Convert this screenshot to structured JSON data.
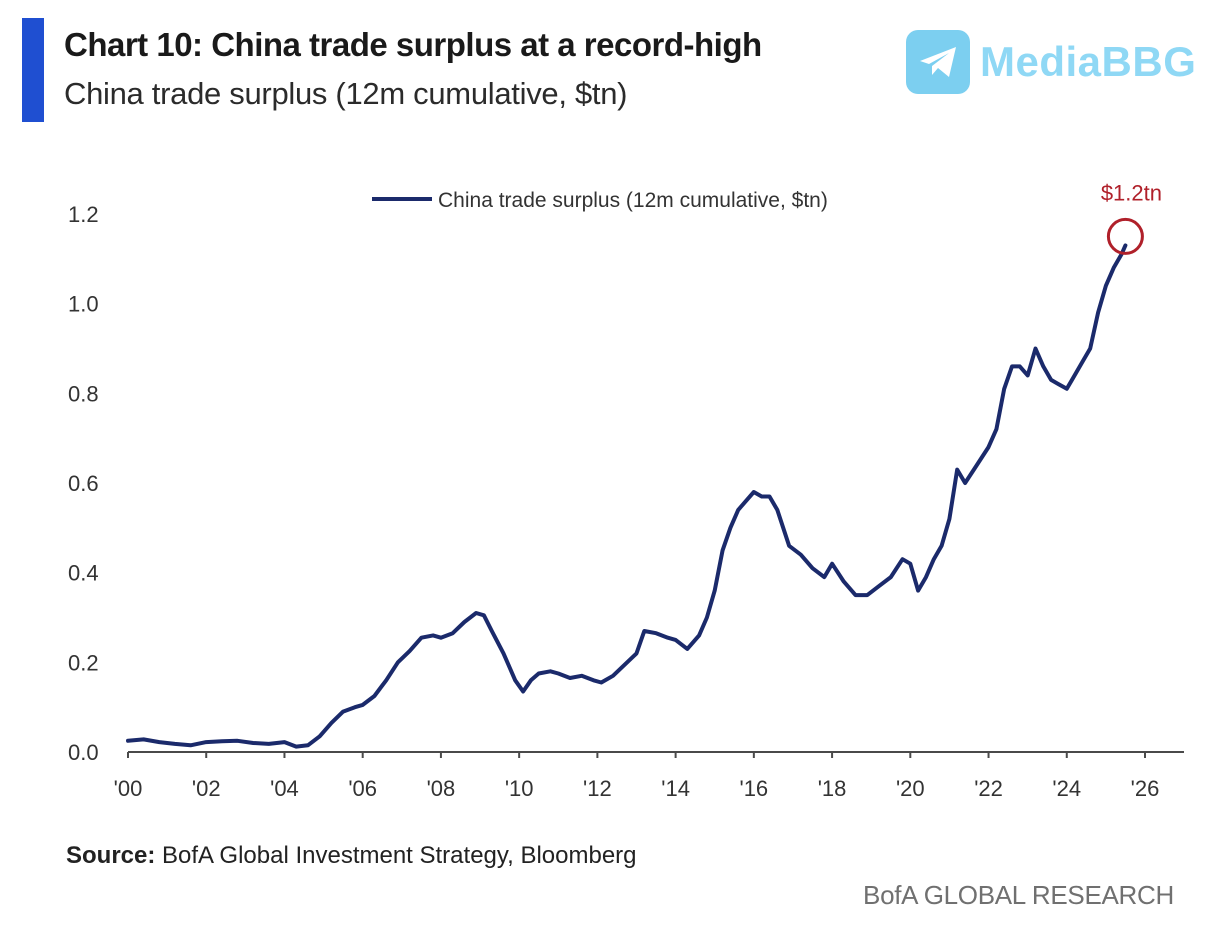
{
  "header": {
    "title": "Chart 10: China trade surplus at a record-high",
    "subtitle": "China trade surplus (12m cumulative, $tn)"
  },
  "watermark": {
    "text": "MediaBBG",
    "icon": "telegram-plane-icon"
  },
  "source": {
    "label": "Source:",
    "text": "BofA Global Investment Strategy, Bloomberg"
  },
  "footer": {
    "brand": "BofA GLOBAL RESEARCH"
  },
  "colors": {
    "line": "#1b2a6b",
    "accent_bar": "#1f4fd1",
    "annotation": "#b0202a",
    "watermark": "#8fd8f5"
  },
  "chart_data": {
    "type": "line",
    "title": "China trade surplus (12m cumulative, $tn)",
    "xlabel": "",
    "ylabel": "",
    "xlim": [
      2000,
      2027
    ],
    "ylim": [
      0,
      1.2
    ],
    "x_ticks": [
      2000,
      2002,
      2004,
      2006,
      2008,
      2010,
      2012,
      2014,
      2016,
      2018,
      2020,
      2022,
      2024,
      2026
    ],
    "x_tick_labels": [
      "'00",
      "'02",
      "'04",
      "'06",
      "'08",
      "'10",
      "'12",
      "'14",
      "'16",
      "'18",
      "'20",
      "'22",
      "'24",
      "'26"
    ],
    "y_ticks": [
      0,
      0.2,
      0.4,
      0.6,
      0.8,
      1.0,
      1.2
    ],
    "y_tick_labels": [
      "0.0",
      "0.2",
      "0.4",
      "0.6",
      "0.8",
      "1.0",
      "1.2"
    ],
    "grid": false,
    "legend": {
      "position": "top-center",
      "entries": [
        "China trade surplus (12m cumulative, $tn)"
      ]
    },
    "annotation": {
      "text": "$1.2tn",
      "x": 2025.5,
      "y": 1.15,
      "marker": "circle"
    },
    "series": [
      {
        "name": "China trade surplus (12m cumulative, $tn)",
        "x": [
          2000.0,
          2000.4,
          2000.8,
          2001.2,
          2001.6,
          2002.0,
          2002.4,
          2002.8,
          2003.2,
          2003.6,
          2004.0,
          2004.3,
          2004.6,
          2004.9,
          2005.2,
          2005.5,
          2005.8,
          2006.0,
          2006.3,
          2006.6,
          2006.9,
          2007.2,
          2007.5,
          2007.8,
          2008.0,
          2008.3,
          2008.6,
          2008.9,
          2009.1,
          2009.3,
          2009.6,
          2009.9,
          2010.1,
          2010.3,
          2010.5,
          2010.8,
          2011.0,
          2011.3,
          2011.6,
          2011.9,
          2012.1,
          2012.4,
          2012.7,
          2013.0,
          2013.2,
          2013.5,
          2013.8,
          2014.0,
          2014.3,
          2014.6,
          2014.8,
          2015.0,
          2015.2,
          2015.4,
          2015.6,
          2015.8,
          2016.0,
          2016.2,
          2016.4,
          2016.6,
          2016.9,
          2017.2,
          2017.5,
          2017.8,
          2018.0,
          2018.3,
          2018.6,
          2018.9,
          2019.2,
          2019.5,
          2019.8,
          2020.0,
          2020.2,
          2020.4,
          2020.6,
          2020.8,
          2021.0,
          2021.2,
          2021.4,
          2021.7,
          2022.0,
          2022.2,
          2022.4,
          2022.6,
          2022.8,
          2023.0,
          2023.2,
          2023.4,
          2023.6,
          2023.8,
          2024.0,
          2024.2,
          2024.4,
          2024.6,
          2024.8,
          2025.0,
          2025.2,
          2025.4,
          2025.5
        ],
        "values": [
          0.025,
          0.028,
          0.022,
          0.018,
          0.015,
          0.022,
          0.024,
          0.025,
          0.02,
          0.018,
          0.022,
          0.012,
          0.015,
          0.035,
          0.065,
          0.09,
          0.1,
          0.105,
          0.125,
          0.16,
          0.2,
          0.225,
          0.255,
          0.26,
          0.255,
          0.265,
          0.29,
          0.31,
          0.305,
          0.27,
          0.22,
          0.16,
          0.135,
          0.16,
          0.175,
          0.18,
          0.175,
          0.165,
          0.17,
          0.16,
          0.155,
          0.17,
          0.195,
          0.22,
          0.27,
          0.265,
          0.255,
          0.25,
          0.23,
          0.26,
          0.3,
          0.36,
          0.45,
          0.5,
          0.54,
          0.56,
          0.58,
          0.57,
          0.57,
          0.54,
          0.46,
          0.44,
          0.41,
          0.39,
          0.42,
          0.38,
          0.35,
          0.35,
          0.37,
          0.39,
          0.43,
          0.42,
          0.36,
          0.39,
          0.43,
          0.46,
          0.52,
          0.63,
          0.6,
          0.64,
          0.68,
          0.72,
          0.81,
          0.86,
          0.86,
          0.84,
          0.9,
          0.86,
          0.83,
          0.82,
          0.81,
          0.84,
          0.87,
          0.9,
          0.98,
          1.04,
          1.08,
          1.11,
          1.13
        ]
      }
    ]
  }
}
